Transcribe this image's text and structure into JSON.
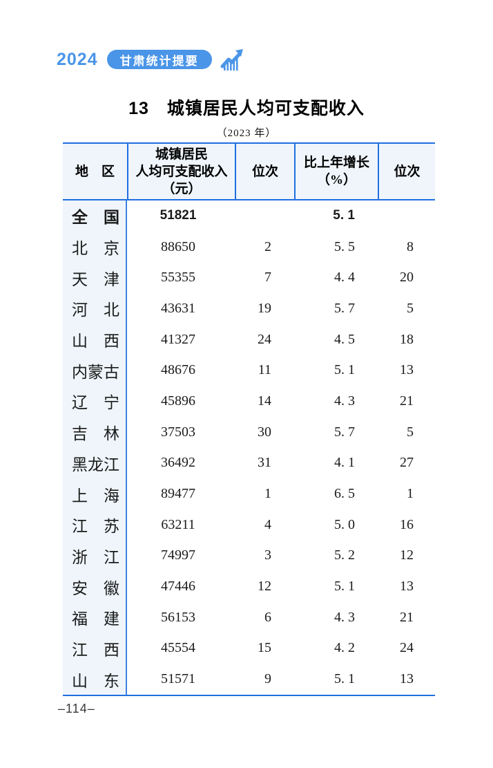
{
  "header": {
    "year": "2024",
    "badge_label": "甘肃统计提要"
  },
  "title": "13　城镇居民人均可支配收入",
  "subtitle": "（2023 年）",
  "table": {
    "columns": [
      {
        "id": "region",
        "label_lines": [
          "地　区"
        ]
      },
      {
        "id": "income",
        "label_lines": [
          "城镇居民",
          "人均可支配收入",
          "（元）"
        ]
      },
      {
        "id": "rank1",
        "label_lines": [
          "位次"
        ]
      },
      {
        "id": "growth",
        "label_lines": [
          "比上年增长",
          "（%）"
        ]
      },
      {
        "id": "rank2",
        "label_lines": [
          "位次"
        ]
      }
    ],
    "rows": [
      {
        "region": "全　国",
        "income": "51821",
        "rank1": "",
        "growth": "5. 1",
        "rank2": "",
        "emphasis": true
      },
      {
        "region": "北　京",
        "income": "88650",
        "rank1": "2",
        "growth": "5. 5",
        "rank2": "8"
      },
      {
        "region": "天　津",
        "income": "55355",
        "rank1": "7",
        "growth": "4. 4",
        "rank2": "20"
      },
      {
        "region": "河　北",
        "income": "43631",
        "rank1": "19",
        "growth": "5. 7",
        "rank2": "5"
      },
      {
        "region": "山　西",
        "income": "41327",
        "rank1": "24",
        "growth": "4. 5",
        "rank2": "18"
      },
      {
        "region": "内蒙古",
        "income": "48676",
        "rank1": "11",
        "growth": "5. 1",
        "rank2": "13"
      },
      {
        "region": "辽　宁",
        "income": "45896",
        "rank1": "14",
        "growth": "4. 3",
        "rank2": "21"
      },
      {
        "region": "吉　林",
        "income": "37503",
        "rank1": "30",
        "growth": "5. 7",
        "rank2": "5"
      },
      {
        "region": "黑龙江",
        "income": "36492",
        "rank1": "31",
        "growth": "4. 1",
        "rank2": "27"
      },
      {
        "region": "上　海",
        "income": "89477",
        "rank1": "1",
        "growth": "6. 5",
        "rank2": "1"
      },
      {
        "region": "江　苏",
        "income": "63211",
        "rank1": "4",
        "growth": "5. 0",
        "rank2": "16"
      },
      {
        "region": "浙　江",
        "income": "74997",
        "rank1": "3",
        "growth": "5. 2",
        "rank2": "12"
      },
      {
        "region": "安　徽",
        "income": "47446",
        "rank1": "12",
        "growth": "5. 1",
        "rank2": "13"
      },
      {
        "region": "福　建",
        "income": "56153",
        "rank1": "6",
        "growth": "4. 3",
        "rank2": "21"
      },
      {
        "region": "江　西",
        "income": "45554",
        "rank1": "15",
        "growth": "4. 2",
        "rank2": "24"
      },
      {
        "region": "山　东",
        "income": "51571",
        "rank1": "9",
        "growth": "5. 1",
        "rank2": "13"
      }
    ]
  },
  "footer": {
    "page_number": "–114–"
  },
  "colors": {
    "accent_blue": "#4a95e8",
    "table_border_blue": "#1f6fe0",
    "tint_background": "#eff5fb"
  }
}
